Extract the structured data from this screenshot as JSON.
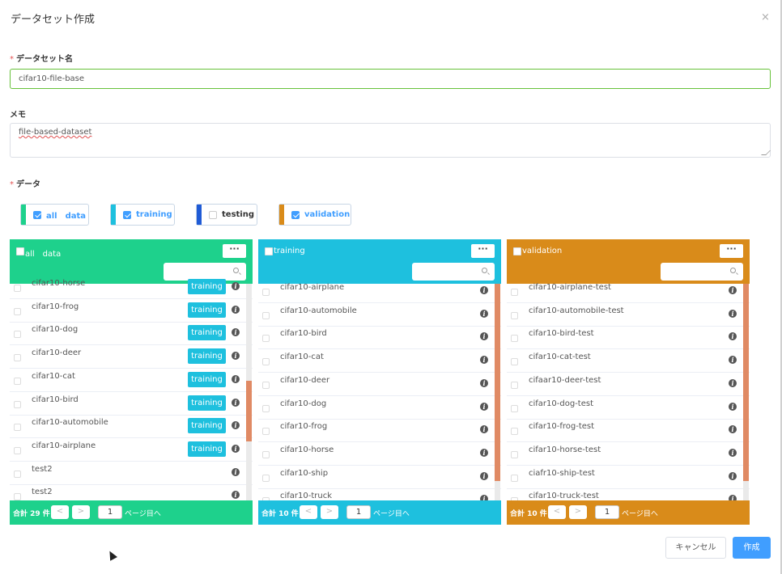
{
  "dialog": {
    "title": "データセット作成",
    "close_glyph": "×"
  },
  "form": {
    "name_label": "データセット名",
    "name_value": "cifar10-file-base",
    "memo_label": "メモ",
    "memo_value": "file-based-dataset",
    "data_label": "データ",
    "required_mark": "*"
  },
  "chips": [
    {
      "label": "all　data",
      "checked": true,
      "color": "#1ed18c"
    },
    {
      "label": "training",
      "checked": true,
      "color": "#1ec0de"
    },
    {
      "label": "testing",
      "checked": false,
      "color": "#1f5bd6"
    },
    {
      "label": "validation",
      "checked": true,
      "color": "#d98b1a"
    }
  ],
  "panels": [
    {
      "title": "all　data",
      "color": "#1ed18c",
      "more_label": "···",
      "total": "合計 29 件",
      "page": "1",
      "page_suffix": "ページ目へ",
      "prev_glyph": "<",
      "next_glyph": ">",
      "items": [
        {
          "label": "cifar10-horse",
          "tag": "training"
        },
        {
          "label": "cifar10-frog",
          "tag": "training"
        },
        {
          "label": "cifar10-dog",
          "tag": "training"
        },
        {
          "label": "cifar10-deer",
          "tag": "training"
        },
        {
          "label": "cifar10-cat",
          "tag": "training"
        },
        {
          "label": "cifar10-bird",
          "tag": "training"
        },
        {
          "label": "cifar10-automobile",
          "tag": "training"
        },
        {
          "label": "cifar10-airplane",
          "tag": "training"
        },
        {
          "label": "test2",
          "tag": ""
        },
        {
          "label": "test2",
          "tag": ""
        }
      ]
    },
    {
      "title": "training",
      "color": "#1ec0de",
      "more_label": "···",
      "total": "合計 10 件",
      "page": "1",
      "page_suffix": "ページ目へ",
      "prev_glyph": "<",
      "next_glyph": ">",
      "items": [
        {
          "label": "cifar10-airplane",
          "tag": ""
        },
        {
          "label": "cifar10-automobile",
          "tag": ""
        },
        {
          "label": "cifar10-bird",
          "tag": ""
        },
        {
          "label": "cifar10-cat",
          "tag": ""
        },
        {
          "label": "cifar10-deer",
          "tag": ""
        },
        {
          "label": "cifar10-dog",
          "tag": ""
        },
        {
          "label": "cifar10-frog",
          "tag": ""
        },
        {
          "label": "cifar10-horse",
          "tag": ""
        },
        {
          "label": "cifar10-ship",
          "tag": ""
        },
        {
          "label": "cifar10-truck",
          "tag": ""
        }
      ]
    },
    {
      "title": "validation",
      "color": "#d98b1a",
      "more_label": "···",
      "total": "合計 10 件",
      "page": "1",
      "page_suffix": "ページ目へ",
      "prev_glyph": "<",
      "next_glyph": ">",
      "items": [
        {
          "label": "cifar10-airplane-test",
          "tag": ""
        },
        {
          "label": "cifar10-automobile-test",
          "tag": ""
        },
        {
          "label": "cifar10-bird-test",
          "tag": ""
        },
        {
          "label": "cifar10-cat-test",
          "tag": ""
        },
        {
          "label": "cifaar10-deer-test",
          "tag": ""
        },
        {
          "label": "cifar10-dog-test",
          "tag": ""
        },
        {
          "label": "cifar10-frog-test",
          "tag": ""
        },
        {
          "label": "cifar10-horse-test",
          "tag": ""
        },
        {
          "label": "ciafr10-ship-test",
          "tag": ""
        },
        {
          "label": "cifar10-truck-test",
          "tag": ""
        }
      ]
    }
  ],
  "buttons": {
    "cancel": "キャンセル",
    "create": "作成"
  },
  "icons": {
    "info": "info-icon",
    "search": "search-icon",
    "close": "close-icon"
  }
}
